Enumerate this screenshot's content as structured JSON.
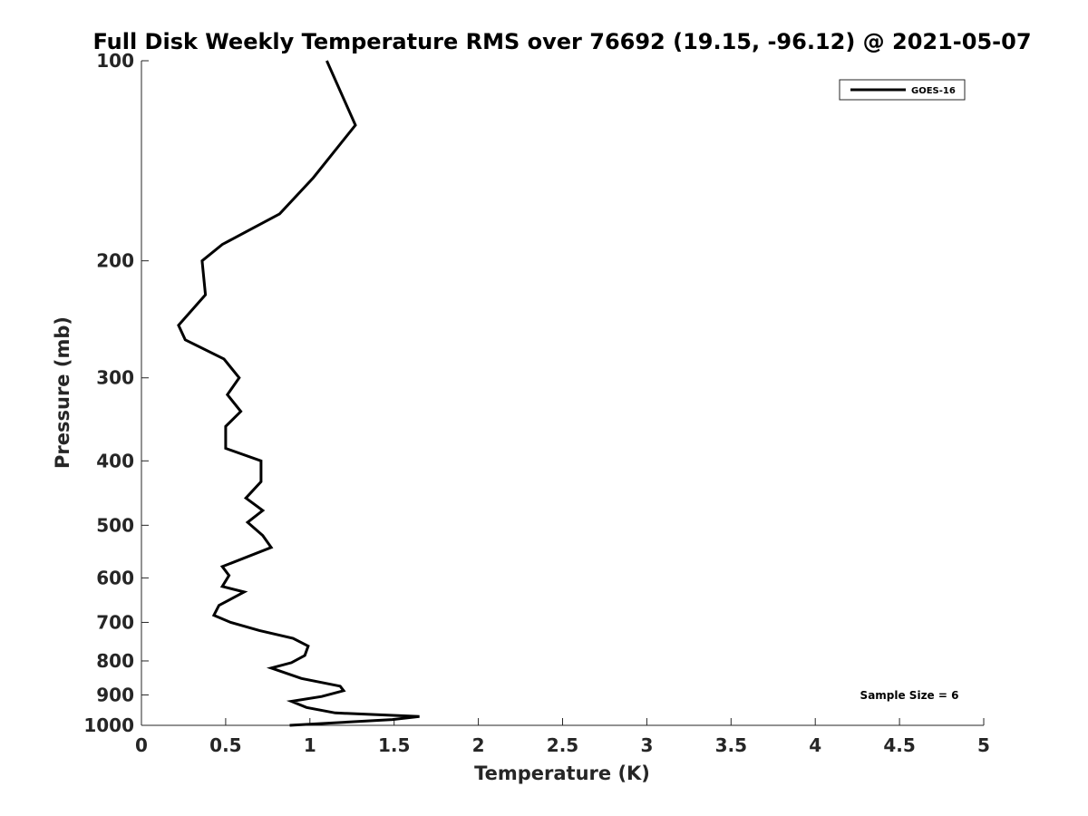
{
  "chart_data": {
    "type": "line",
    "title": "Full Disk Weekly Temperature RMS over 76692 (19.15, -96.12) @ 2021-05-07",
    "xlabel": "Temperature (K)",
    "ylabel": "Pressure (mb)",
    "xlim": [
      0,
      5
    ],
    "ylim": [
      1000,
      100
    ],
    "y_scale": "log",
    "y_reversed": true,
    "grid": false,
    "legend_position": "top-right",
    "x_ticks": [
      "0",
      "0.5",
      "1",
      "1.5",
      "2",
      "2.5",
      "3",
      "3.5",
      "4",
      "4.5",
      "5"
    ],
    "y_ticks": [
      "100",
      "200",
      "300",
      "400",
      "500",
      "600",
      "700",
      "800",
      "900",
      "1000"
    ],
    "annotation": "Sample Size = 6",
    "series": [
      {
        "name": "GOES-16",
        "color": "#000000",
        "points": [
          [
            1.1,
            100
          ],
          [
            1.27,
            125
          ],
          [
            1.02,
            150
          ],
          [
            0.82,
            170
          ],
          [
            0.48,
            189
          ],
          [
            0.36,
            200
          ],
          [
            0.38,
            225
          ],
          [
            0.22,
            250
          ],
          [
            0.26,
            263
          ],
          [
            0.49,
            281
          ],
          [
            0.58,
            300
          ],
          [
            0.51,
            318
          ],
          [
            0.59,
            337
          ],
          [
            0.5,
            355
          ],
          [
            0.5,
            383
          ],
          [
            0.71,
            400
          ],
          [
            0.71,
            430
          ],
          [
            0.62,
            455
          ],
          [
            0.72,
            475
          ],
          [
            0.63,
            495
          ],
          [
            0.72,
            518
          ],
          [
            0.77,
            540
          ],
          [
            0.48,
            577
          ],
          [
            0.52,
            595
          ],
          [
            0.48,
            618
          ],
          [
            0.61,
            630
          ],
          [
            0.46,
            660
          ],
          [
            0.43,
            683
          ],
          [
            0.53,
            700
          ],
          [
            0.7,
            720
          ],
          [
            0.9,
            740
          ],
          [
            0.99,
            760
          ],
          [
            0.97,
            785
          ],
          [
            0.89,
            805
          ],
          [
            0.77,
            820
          ],
          [
            0.95,
            850
          ],
          [
            1.18,
            873
          ],
          [
            1.2,
            887
          ],
          [
            1.07,
            905
          ],
          [
            0.89,
            920
          ],
          [
            0.98,
            940
          ],
          [
            1.15,
            958
          ],
          [
            1.65,
            970
          ],
          [
            1.49,
            980
          ],
          [
            0.88,
            1000
          ]
        ]
      }
    ]
  }
}
